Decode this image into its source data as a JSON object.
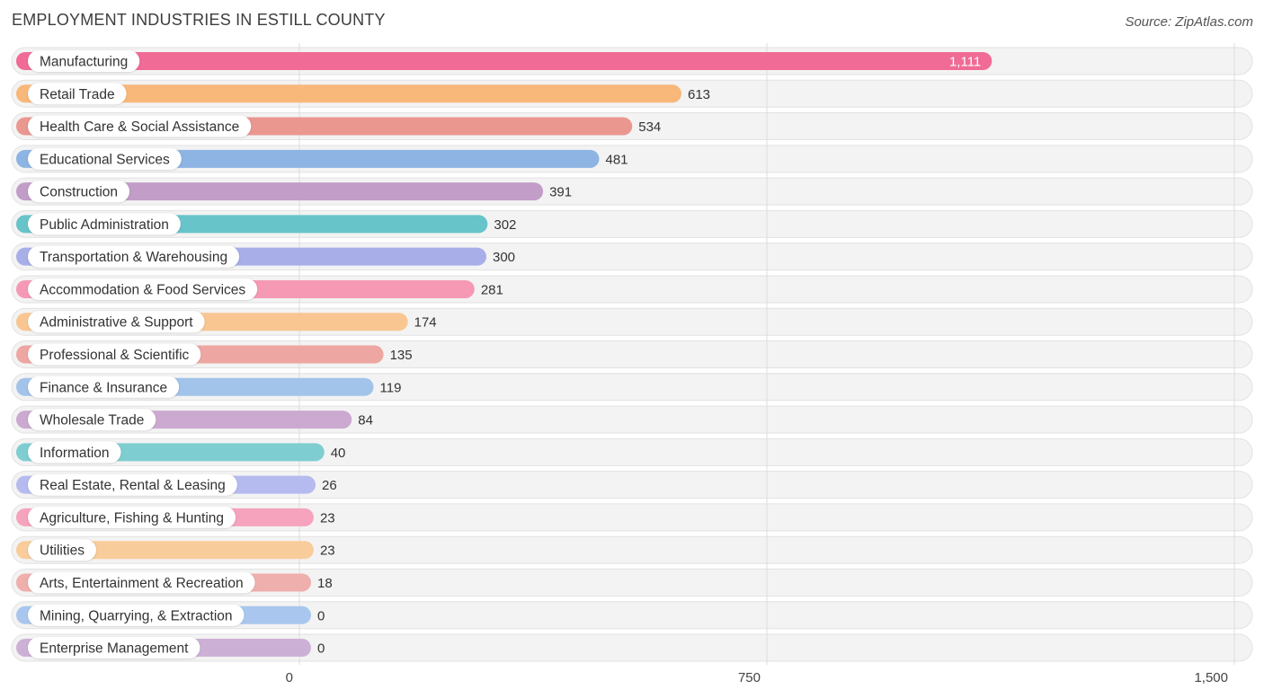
{
  "title": "EMPLOYMENT INDUSTRIES IN ESTILL COUNTY",
  "source": "Source: ZipAtlas.com",
  "chart_data": {
    "type": "bar",
    "orientation": "horizontal",
    "title": "EMPLOYMENT INDUSTRIES IN ESTILL COUNTY",
    "categories": [
      "Manufacturing",
      "Retail Trade",
      "Health Care & Social Assistance",
      "Educational Services",
      "Construction",
      "Public Administration",
      "Transportation & Warehousing",
      "Accommodation & Food Services",
      "Administrative & Support",
      "Professional & Scientific",
      "Finance & Insurance",
      "Wholesale Trade",
      "Information",
      "Real Estate, Rental & Leasing",
      "Agriculture, Fishing & Hunting",
      "Utilities",
      "Arts, Entertainment & Recreation",
      "Mining, Quarrying, & Extraction",
      "Enterprise Management"
    ],
    "values": [
      1111,
      613,
      534,
      481,
      391,
      302,
      300,
      281,
      174,
      135,
      119,
      84,
      40,
      26,
      23,
      23,
      18,
      0,
      0
    ],
    "value_labels": [
      "1,111",
      "613",
      "534",
      "481",
      "391",
      "302",
      "300",
      "281",
      "174",
      "135",
      "119",
      "84",
      "40",
      "26",
      "23",
      "23",
      "18",
      "0",
      "0"
    ],
    "colors": [
      "#f06b95",
      "#f8b87a",
      "#ea9790",
      "#8db4e3",
      "#c29dc8",
      "#67c4c9",
      "#a7aee8",
      "#f599b5",
      "#f9c692",
      "#eda6a1",
      "#a2c3ea",
      "#cca9d1",
      "#7ecdd1",
      "#b5bbef",
      "#f6a3bd",
      "#f9cc9c",
      "#efafad",
      "#a9c7ee",
      "#cdb0d6"
    ],
    "xticks": [
      0,
      750,
      1500
    ],
    "xtick_labels": [
      "0",
      "750",
      "1,500"
    ],
    "xlim": [
      0,
      1500
    ],
    "grid": true
  }
}
